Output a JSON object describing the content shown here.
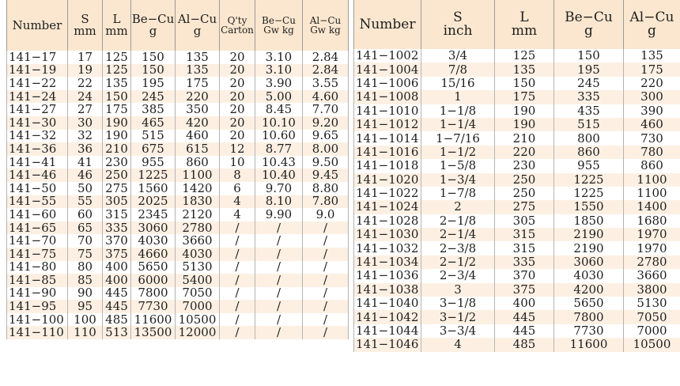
{
  "left_table": {
    "headers": [
      {
        "line1": "Number",
        "line2": ""
      },
      {
        "line1": "S",
        "line2": "mm"
      },
      {
        "line1": "L",
        "line2": "mm"
      },
      {
        "line1": "Be−Cu",
        "line2": "g"
      },
      {
        "line1": "Al−Cu",
        "line2": "g"
      },
      {
        "line1": "Q'ty",
        "line2": "Carton"
      },
      {
        "line1": "Be−Cu",
        "line2": "Gw kg"
      },
      {
        "line1": "Al−Cu",
        "line2": "Gw kg"
      }
    ],
    "rows": [
      [
        "141−17",
        "17",
        "125",
        "150",
        "135",
        "20",
        "3.10",
        "2.84"
      ],
      [
        "141−19",
        "19",
        "125",
        "150",
        "135",
        "20",
        "3.10",
        "2.84"
      ],
      [
        "141−22",
        "22",
        "135",
        "195",
        "175",
        "20",
        "3.90",
        "3.55"
      ],
      [
        "141−24",
        "24",
        "150",
        "245",
        "220",
        "20",
        "5.00",
        "4.60"
      ],
      [
        "141−27",
        "27",
        "175",
        "385",
        "350",
        "20",
        "8.45",
        "7.70"
      ],
      [
        "141−30",
        "30",
        "190",
        "465",
        "420",
        "20",
        "10.10",
        "9.20"
      ],
      [
        "141−32",
        "32",
        "190",
        "515",
        "460",
        "20",
        "10.60",
        "9.65"
      ],
      [
        "141−36",
        "36",
        "210",
        "675",
        "615",
        "12",
        "8.77",
        "8.00"
      ],
      [
        "141−41",
        "41",
        "230",
        "955",
        "860",
        "10",
        "10.43",
        "9.50"
      ],
      [
        "141−46",
        "46",
        "250",
        "1225",
        "1100",
        "8",
        "10.40",
        "9.45"
      ],
      [
        "141−50",
        "50",
        "275",
        "1560",
        "1420",
        "6",
        "9.70",
        "8.80"
      ],
      [
        "141−55",
        "55",
        "305",
        "2025",
        "1830",
        "4",
        "8.10",
        "7.80"
      ],
      [
        "141−60",
        "60",
        "315",
        "2345",
        "2120",
        "4",
        "9.90",
        "9.0"
      ],
      [
        "141−65",
        "65",
        "335",
        "3060",
        "2780",
        "/",
        "/",
        "/"
      ],
      [
        "141−70",
        "70",
        "370",
        "4030",
        "3660",
        "/",
        "/",
        "/"
      ],
      [
        "141−75",
        "75",
        "375",
        "4660",
        "4030",
        "/",
        "/",
        "/"
      ],
      [
        "141−80",
        "80",
        "400",
        "5650",
        "5130",
        "/",
        "/",
        "/"
      ],
      [
        "141−85",
        "85",
        "400",
        "6000",
        "5400",
        "/",
        "/",
        "/"
      ],
      [
        "141−90",
        "90",
        "445",
        "7800",
        "7050",
        "/",
        "/",
        "/"
      ],
      [
        "141−95",
        "95",
        "445",
        "7730",
        "7000",
        "/",
        "/",
        "/"
      ],
      [
        "141−100",
        "100",
        "485",
        "11600",
        "10500",
        "/",
        "/",
        "/"
      ],
      [
        "141−110",
        "110",
        "513",
        "13500",
        "12000",
        "/",
        "/",
        "/"
      ]
    ]
  },
  "right_table": {
    "headers": [
      {
        "line1": "Number",
        "line2": ""
      },
      {
        "line1": "S",
        "line2": "inch"
      },
      {
        "line1": "L",
        "line2": "mm"
      },
      {
        "line1": "Be−Cu",
        "line2": "g"
      },
      {
        "line1": "Al−Cu",
        "line2": "g"
      }
    ],
    "rows": [
      [
        "141−1002",
        "3/4",
        "125",
        "150",
        "135"
      ],
      [
        "141−1004",
        "7/8",
        "135",
        "195",
        "175"
      ],
      [
        "141−1006",
        "15/16",
        "150",
        "245",
        "220"
      ],
      [
        "141−1008",
        "1",
        "175",
        "335",
        "300"
      ],
      [
        "141−1010",
        "1−1/8",
        "190",
        "435",
        "390"
      ],
      [
        "141−1012",
        "1−1/4",
        "190",
        "515",
        "460"
      ],
      [
        "141−1014",
        "1−7/16",
        "210",
        "800",
        "730"
      ],
      [
        "141−1016",
        "1−1/2",
        "220",
        "860",
        "780"
      ],
      [
        "141−1018",
        "1−5/8",
        "230",
        "955",
        "860"
      ],
      [
        "141−1020",
        "1−3/4",
        "250",
        "1225",
        "1100"
      ],
      [
        "141−1022",
        "1−7/8",
        "250",
        "1225",
        "1100"
      ],
      [
        "141−1024",
        "2",
        "275",
        "1550",
        "1400"
      ],
      [
        "141−1028",
        "2−1/8",
        "305",
        "1850",
        "1680"
      ],
      [
        "141−1030",
        "2−1/4",
        "315",
        "2190",
        "1970"
      ],
      [
        "141−1032",
        "2−3/8",
        "315",
        "2190",
        "1970"
      ],
      [
        "141−1034",
        "2−1/2",
        "335",
        "3060",
        "2780"
      ],
      [
        "141−1036",
        "2−3/4",
        "370",
        "4030",
        "3660"
      ],
      [
        "141−1038",
        "3",
        "375",
        "4200",
        "3800"
      ],
      [
        "141−1040",
        "3−1/8",
        "400",
        "5650",
        "5130"
      ],
      [
        "141−1042",
        "3−1/2",
        "445",
        "7800",
        "7050"
      ],
      [
        "141−1044",
        "3−3/4",
        "445",
        "7730",
        "7000"
      ],
      [
        "141−1046",
        "4",
        "485",
        "11600",
        "10500"
      ]
    ]
  }
}
